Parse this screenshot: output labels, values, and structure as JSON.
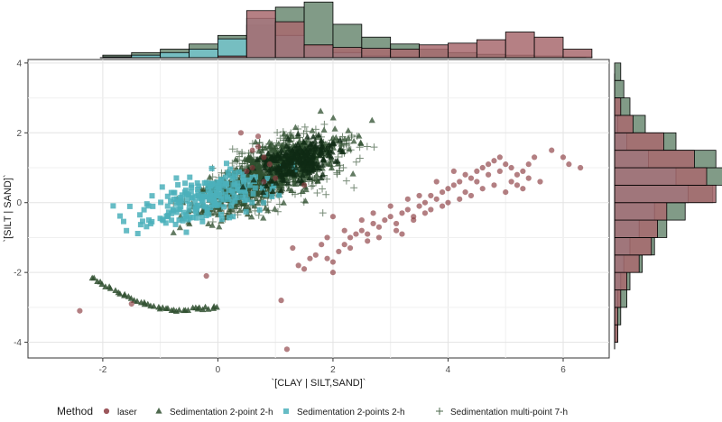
{
  "chart_data": {
    "type": "scatter",
    "xlabel": "`[CLAY | SILT,SAND]`",
    "ylabel": "`[SILT | SAND]`",
    "xlim": [
      -3.3,
      6.8
    ],
    "ylim": [
      -4.45,
      4.1
    ],
    "x_ticks": [
      -2,
      0,
      2,
      4,
      6
    ],
    "y_ticks": [
      -4,
      -2,
      0,
      2,
      4
    ],
    "grid": true,
    "legend": {
      "title": "Method",
      "placement": "bottom"
    },
    "series": [
      {
        "name": "laser",
        "marker": "circle",
        "color": "#8b3a3f",
        "points": [
          [
            -2.4,
            -3.1
          ],
          [
            -1.5,
            -2.9
          ],
          [
            -0.2,
            -2.1
          ],
          [
            1.1,
            -2.8
          ],
          [
            1.2,
            -4.2
          ],
          [
            0.6,
            1.5
          ],
          [
            0.8,
            1.3
          ],
          [
            0.9,
            1.1
          ],
          [
            0.5,
            0.9
          ],
          [
            0.4,
            2.0
          ],
          [
            0.7,
            1.6
          ],
          [
            1.0,
            0.7
          ],
          [
            1.3,
            -1.3
          ],
          [
            1.5,
            -1.9
          ],
          [
            1.7,
            -1.5
          ],
          [
            1.9,
            -1.6
          ],
          [
            2.0,
            -2.0
          ],
          [
            2.1,
            -1.4
          ],
          [
            2.2,
            -1.2
          ],
          [
            2.3,
            -1.0
          ],
          [
            2.4,
            -0.9
          ],
          [
            2.5,
            -0.8
          ],
          [
            2.6,
            -1.1
          ],
          [
            2.7,
            -0.6
          ],
          [
            2.8,
            -0.7
          ],
          [
            2.9,
            -0.5
          ],
          [
            3.0,
            -0.4
          ],
          [
            3.1,
            -0.6
          ],
          [
            3.2,
            -0.3
          ],
          [
            3.3,
            -0.2
          ],
          [
            3.4,
            -0.4
          ],
          [
            3.5,
            -0.1
          ],
          [
            3.6,
            0.0
          ],
          [
            3.7,
            0.2
          ],
          [
            3.8,
            0.1
          ],
          [
            3.9,
            0.3
          ],
          [
            4.0,
            0.4
          ],
          [
            4.1,
            0.5
          ],
          [
            4.2,
            0.6
          ],
          [
            4.3,
            0.8
          ],
          [
            4.4,
            0.7
          ],
          [
            4.5,
            0.9
          ],
          [
            4.6,
            1.0
          ],
          [
            4.7,
            1.1
          ],
          [
            4.8,
            1.2
          ],
          [
            4.9,
            1.3
          ],
          [
            5.0,
            1.1
          ],
          [
            5.1,
            1.0
          ],
          [
            5.2,
            0.8
          ],
          [
            5.3,
            0.9
          ],
          [
            5.4,
            0.7
          ],
          [
            5.5,
            1.3
          ],
          [
            5.8,
            1.5
          ],
          [
            6.0,
            1.3
          ],
          [
            6.1,
            1.1
          ],
          [
            6.3,
            1.0
          ],
          [
            4.6,
            0.4
          ],
          [
            4.8,
            0.5
          ],
          [
            5.0,
            0.3
          ],
          [
            5.2,
            0.5
          ],
          [
            4.4,
            0.2
          ],
          [
            4.2,
            0.1
          ],
          [
            3.9,
            -0.1
          ],
          [
            3.6,
            -0.3
          ],
          [
            3.4,
            -0.5
          ],
          [
            3.1,
            -0.8
          ],
          [
            2.8,
            -1.0
          ],
          [
            2.6,
            -0.9
          ],
          [
            2.3,
            -1.3
          ],
          [
            2.0,
            -1.7
          ],
          [
            1.8,
            -1.2
          ],
          [
            3.3,
            0.1
          ],
          [
            3.7,
            -0.2
          ],
          [
            4.9,
            0.9
          ],
          [
            5.1,
            0.6
          ],
          [
            5.3,
            0.4
          ],
          [
            4.7,
            0.8
          ],
          [
            4.5,
            0.6
          ],
          [
            4.3,
            0.3
          ],
          [
            3.5,
            0.2
          ],
          [
            3.0,
            -0.1
          ],
          [
            2.7,
            -0.3
          ],
          [
            2.5,
            -0.5
          ],
          [
            2.2,
            -0.8
          ],
          [
            1.9,
            -1.0
          ],
          [
            1.6,
            -1.6
          ],
          [
            1.4,
            -1.8
          ],
          [
            0.6,
            1.0
          ],
          [
            0.8,
            0.6
          ],
          [
            0.7,
            1.9
          ],
          [
            1.5,
            0.5
          ],
          [
            2.0,
            -0.4
          ],
          [
            5.6,
            0.6
          ],
          [
            5.4,
            1.1
          ],
          [
            4.1,
            0.9
          ],
          [
            3.8,
            0.6
          ],
          [
            4.0,
            0.0
          ],
          [
            3.2,
            -0.9
          ]
        ]
      },
      {
        "name": "Sedimentation 2-point 2-h",
        "marker": "triangle",
        "color": "#2f4f2f"
      },
      {
        "name": "Sedimentation 2-points 2-h",
        "marker": "square",
        "color": "#4bb0bb"
      },
      {
        "name": "Sedimentation multi-point 7-h",
        "marker": "plus",
        "color": "#2f4f2f"
      }
    ],
    "marginal_top": {
      "bins_x": [
        -2.0,
        -1.5,
        -1.0,
        -0.5,
        0.0,
        0.5,
        1.0,
        1.5,
        2.0,
        2.5,
        3.0,
        3.5,
        4.0,
        4.5,
        5.0,
        5.5,
        6.0,
        6.5
      ],
      "heights": [
        {
          "series": "Sedimentation 2-point 2-h",
          "values": [
            0.3,
            0.6,
            1.0,
            1.6,
            2.6,
            3.8,
            5.9,
            6.5,
            3.9,
            2.4,
            1.6,
            1.0,
            0.6,
            0.4,
            0.3,
            0.2,
            0.1
          ]
        },
        {
          "series": "Sedimentation 2-points 2-h",
          "values": [
            0.1,
            0.3,
            0.6,
            1.0,
            2.2,
            4.6,
            2.6,
            1.4,
            0.6,
            0.2,
            0.1,
            0,
            0,
            0,
            0,
            0,
            0
          ]
        },
        {
          "series": "laser",
          "values": [
            0,
            0,
            0,
            0,
            0.2,
            5.5,
            4.2,
            1.5,
            1.2,
            1.1,
            1.0,
            1.5,
            1.7,
            2.1,
            3.0,
            2.4,
            1.0
          ]
        }
      ]
    },
    "marginal_right": {
      "bins_y": [
        -4.0,
        -3.5,
        -3.0,
        -2.5,
        -2.0,
        -1.5,
        -1.0,
        -0.5,
        0.0,
        0.5,
        1.0,
        1.5,
        2.0,
        2.5,
        3.0,
        3.5,
        4.0
      ],
      "heights": [
        {
          "series": "Sedimentation 2-point 2-h",
          "values": [
            0.1,
            0.2,
            0.4,
            0.5,
            0.9,
            1.3,
            1.7,
            2.3,
            3.2,
            3.6,
            3.3,
            2.0,
            1.0,
            0.5,
            0.3,
            0.2
          ]
        },
        {
          "series": "Sedimentation 2-points 2-h",
          "values": [
            0,
            0,
            0.1,
            0.2,
            0.3,
            0.5,
            0.8,
            1.3,
            2.4,
            2.0,
            1.1,
            0.4,
            0.1,
            0,
            0,
            0
          ]
        },
        {
          "series": "laser",
          "values": [
            0.1,
            0.1,
            0.2,
            0.4,
            0.8,
            1.2,
            1.4,
            1.7,
            3.3,
            3.0,
            2.6,
            1.6,
            0.6,
            0.2,
            0,
            0
          ]
        }
      ]
    }
  }
}
